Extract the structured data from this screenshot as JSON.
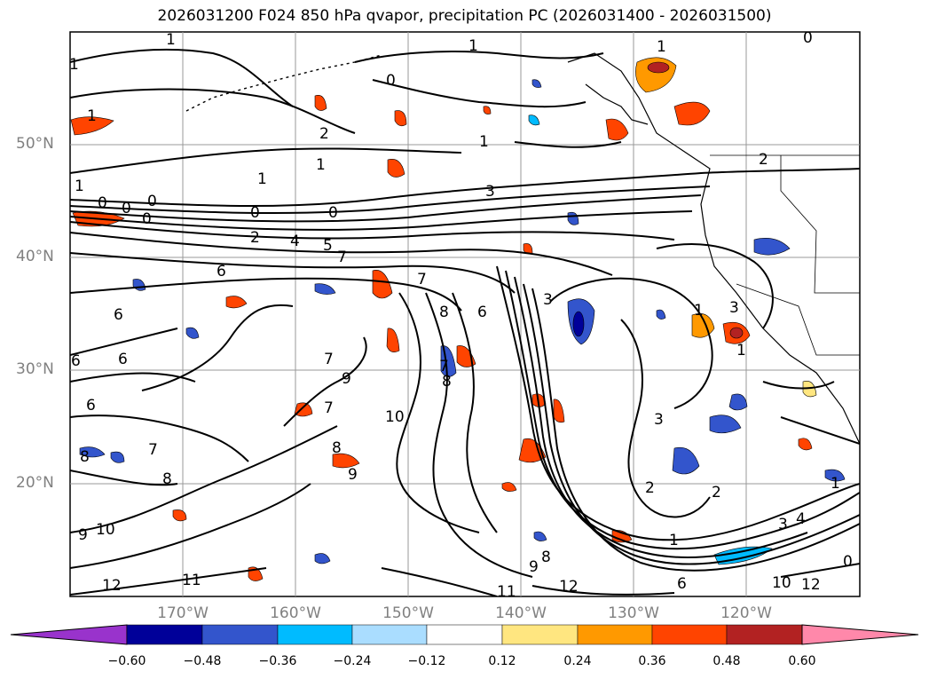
{
  "title": "2026031200 F024 850 hPa qvapor, precipitation PC (2026031400 - 2026031500)",
  "map": {
    "lat_labels": [
      "50°N",
      "40°N",
      "30°N",
      "20°N"
    ],
    "lon_labels": [
      "170°W",
      "160°W",
      "150°W",
      "140°W",
      "130°W",
      "120°W"
    ],
    "contour_labels": [
      "1",
      "0",
      "2",
      "3",
      "4",
      "5",
      "6",
      "7",
      "8",
      "9",
      "10",
      "11",
      "12"
    ]
  },
  "colorbar": {
    "ticks": [
      "−0.60",
      "−0.48",
      "−0.36",
      "−0.24",
      "−0.12",
      "0.12",
      "0.24",
      "0.36",
      "0.48",
      "0.60"
    ],
    "colors": [
      "#9933cc",
      "#000099",
      "#3355cc",
      "#00bbff",
      "#aaddff",
      "#ffffff",
      "#ffe680",
      "#ff9900",
      "#ff4400",
      "#b22222",
      "#ff88aa"
    ]
  }
}
